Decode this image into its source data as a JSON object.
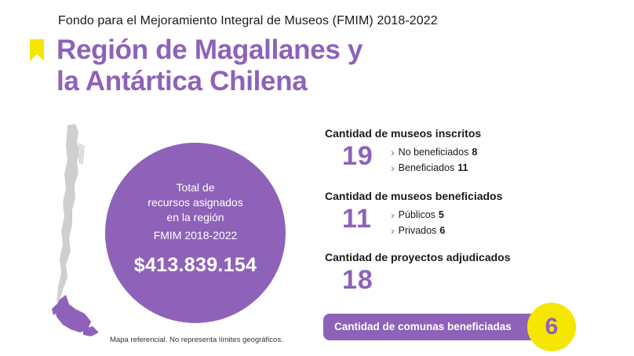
{
  "header": {
    "kicker": "Fondo para el Mejoramiento Integral de Museos (FMIM) 2018-2022",
    "title_line1": "Región de Magallanes y",
    "title_line2": "la Antártica Chilena"
  },
  "colors": {
    "accent_purple": "#8e62b8",
    "accent_yellow": "#f5e600",
    "map_gray": "#cfcfcf"
  },
  "icons": {
    "bookmark": "bookmark-icon",
    "map": "chile-map-icon",
    "chevron": "chevron-right-icon"
  },
  "circle": {
    "label_line1": "Total de",
    "label_line2": "recursos asignados",
    "label_line3": "en la región",
    "period": "FMIM 2018-2022",
    "amount": "$413.839.154"
  },
  "map_note": "Mapa referencial. No representa límites geográficos.",
  "stats": {
    "inscritos": {
      "heading": "Cantidad de museos inscritos",
      "value": "19",
      "items": [
        {
          "label": "No beneficiados",
          "value": "8"
        },
        {
          "label": "Beneficiados",
          "value": "11"
        }
      ]
    },
    "beneficiados": {
      "heading": "Cantidad de museos beneficiados",
      "value": "11",
      "items": [
        {
          "label": "Públicos",
          "value": "5"
        },
        {
          "label": "Privados",
          "value": "6"
        }
      ]
    },
    "proyectos": {
      "heading": "Cantidad de proyectos adjudicados",
      "value": "18"
    }
  },
  "comunas": {
    "label": "Cantidad de comunas beneficiadas",
    "value": "6"
  }
}
